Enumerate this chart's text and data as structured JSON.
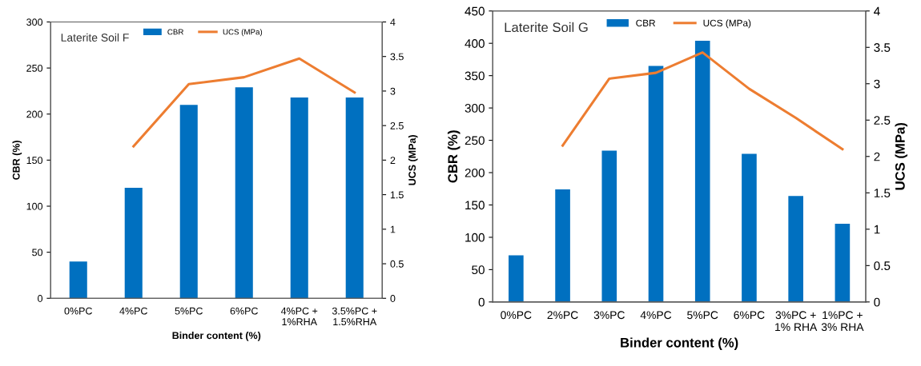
{
  "chart_data": [
    {
      "type": "bar",
      "title": "Laterite Soil F",
      "xlabel": "Binder content (%)",
      "ylabel": "CBR (%)",
      "y2label": "UCS (MPa)",
      "categories": [
        "0%PC",
        "4%PC",
        "5%PC",
        "6%PC",
        "4%PC +\n1%RHA",
        "3.5%PC +\n1.5%RHA"
      ],
      "series": [
        {
          "name": "CBR",
          "color": "#0070c0",
          "values": [
            40,
            120,
            210,
            229,
            218,
            218
          ]
        },
        {
          "name": "UCS (MPa)",
          "type": "line",
          "axis": "y2",
          "color": "#ed7d31",
          "values": [
            null,
            2.2,
            3.1,
            3.2,
            3.47,
            2.98
          ]
        }
      ],
      "ylim": [
        0,
        300
      ],
      "yticks": [
        0,
        50,
        100,
        150,
        200,
        250,
        300
      ],
      "y2lim": [
        0,
        4
      ],
      "y2ticks": [
        0,
        0.5,
        1,
        1.5,
        2,
        2.5,
        3,
        3.5,
        4
      ],
      "legend": "top",
      "grid": false,
      "marker": "none"
    },
    {
      "type": "bar",
      "title": "Laterite Soil G",
      "xlabel": "Binder content (%)",
      "ylabel": "CBR (%)",
      "y2label": "UCS (MPa)",
      "categories": [
        "0%PC",
        "2%PC",
        "3%PC",
        "4%PC",
        "5%PC",
        "6%PC",
        "3%PC +\n1% RHA",
        "1%PC +\n3% RHA"
      ],
      "series": [
        {
          "name": "CBR",
          "color": "#0070c0",
          "values": [
            72,
            174,
            234,
            365,
            404,
            229,
            164,
            121
          ]
        },
        {
          "name": "UCS (MPa)",
          "type": "line",
          "axis": "y2",
          "color": "#ed7d31",
          "values": [
            null,
            2.15,
            3.07,
            3.15,
            3.43,
            2.93,
            2.53,
            2.1
          ]
        }
      ],
      "ylim": [
        0,
        450
      ],
      "yticks": [
        0,
        50,
        100,
        150,
        200,
        250,
        300,
        350,
        400,
        450
      ],
      "y2lim": [
        0,
        4
      ],
      "y2ticks": [
        0,
        0.5,
        1,
        1.5,
        2,
        2.5,
        3,
        3.5,
        4
      ],
      "legend": "top",
      "grid": false,
      "marker": "none"
    }
  ]
}
